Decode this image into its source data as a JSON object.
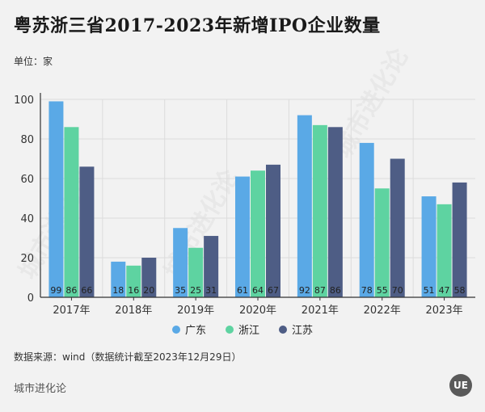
{
  "title": "粤苏浙三省2017-2023年新增IPO企业数量",
  "unit_label": "单位：家",
  "source_label": "数据来源：wind（数据统计截至2023年12月29日）",
  "footer_brand": "城市进化论",
  "logo_text": "UE",
  "watermark_text": "城市进化论",
  "colors": {
    "guangdong": "#5aa9e6",
    "zhejiang": "#5ed3a1",
    "jiangsu": "#4e5d85",
    "axis": "#333333",
    "grid": "#dcdcdc"
  },
  "chart_data": {
    "type": "bar",
    "categories": [
      "2017年",
      "2018年",
      "2019年",
      "2020年",
      "2021年",
      "2022年",
      "2023年"
    ],
    "series": [
      {
        "name": "广东",
        "values": [
          99,
          18,
          35,
          61,
          92,
          78,
          51
        ]
      },
      {
        "name": "浙江",
        "values": [
          86,
          16,
          25,
          64,
          87,
          55,
          47
        ]
      },
      {
        "name": "江苏",
        "values": [
          66,
          20,
          31,
          67,
          86,
          70,
          58
        ]
      }
    ],
    "ylim": [
      0,
      100
    ],
    "yticks": [
      0,
      20,
      40,
      60,
      80,
      100
    ],
    "grid": true,
    "legend_position": "bottom"
  }
}
